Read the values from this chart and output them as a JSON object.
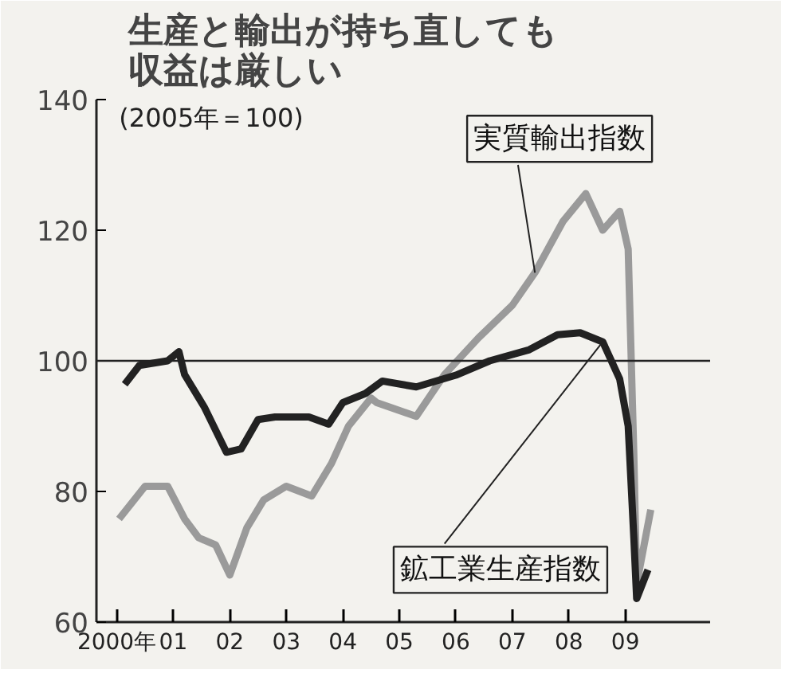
{
  "chart_data": {
    "type": "line",
    "title": "生産と輸出が持ち直しても収益は厳しい",
    "subtitle": "(2005年＝100)",
    "xlim": [
      1999.64,
      2010.5
    ],
    "ylim": [
      60,
      140
    ],
    "yticks": [
      60,
      80,
      100,
      120,
      140
    ],
    "xticks": [
      {
        "value": 2000,
        "label": "2000年"
      },
      {
        "value": 2001,
        "label": "01"
      },
      {
        "value": 2002,
        "label": "02"
      },
      {
        "value": 2003,
        "label": "03"
      },
      {
        "value": 2004,
        "label": "04"
      },
      {
        "value": 2005,
        "label": "05"
      },
      {
        "value": 2006,
        "label": "06"
      },
      {
        "value": 2007,
        "label": "07"
      },
      {
        "value": 2008,
        "label": "08"
      },
      {
        "value": 2009,
        "label": "09"
      }
    ],
    "grid": false,
    "line_style": "solid",
    "marker": "none",
    "ref_lines": [
      {
        "axis": "y",
        "value": 100,
        "color": "#222222"
      }
    ],
    "series": [
      {
        "name": "実質輸出指数",
        "color": "#9a9a9a",
        "x": [
          2000.04,
          2000.5,
          2000.9,
          2001.2,
          2001.45,
          2001.75,
          2002.0,
          2002.3,
          2002.6,
          2003.0,
          2003.45,
          2003.8,
          2004.1,
          2004.5,
          2004.6,
          2005.3,
          2005.8,
          2006.4,
          2007.0,
          2007.4,
          2007.9,
          2008.3,
          2008.6,
          2008.9,
          2009.05,
          2009.15,
          2009.2,
          2009.45
        ],
        "values": [
          75.8,
          80.8,
          80.8,
          75.8,
          72.9,
          71.8,
          67.2,
          74.4,
          78.7,
          80.8,
          79.3,
          84.3,
          90,
          94.3,
          93.6,
          91.5,
          97.9,
          103.5,
          108.5,
          113.5,
          121.4,
          125.6,
          120,
          122.9,
          117.1,
          85.7,
          65.8,
          77.2
        ]
      },
      {
        "name": "鉱工業生産指数",
        "color": "#222222",
        "x": [
          2000.14,
          2000.4,
          2000.9,
          2001.1,
          2001.2,
          2001.55,
          2001.94,
          2002.2,
          2002.5,
          2002.8,
          2003.4,
          2003.75,
          2004.0,
          2004.4,
          2004.7,
          2005.3,
          2006.0,
          2006.6,
          2007.3,
          2007.8,
          2008.2,
          2008.6,
          2008.9,
          2009.05,
          2009.15,
          2009.2,
          2009.4
        ],
        "values": [
          96.4,
          99.3,
          100,
          101.4,
          97.9,
          92.9,
          86,
          86.5,
          91,
          91.4,
          91.4,
          90.3,
          93.6,
          95,
          96.9,
          96,
          97.8,
          100,
          101.7,
          104,
          104.3,
          102.9,
          97.2,
          90,
          72.9,
          63.6,
          68
        ]
      }
    ]
  }
}
